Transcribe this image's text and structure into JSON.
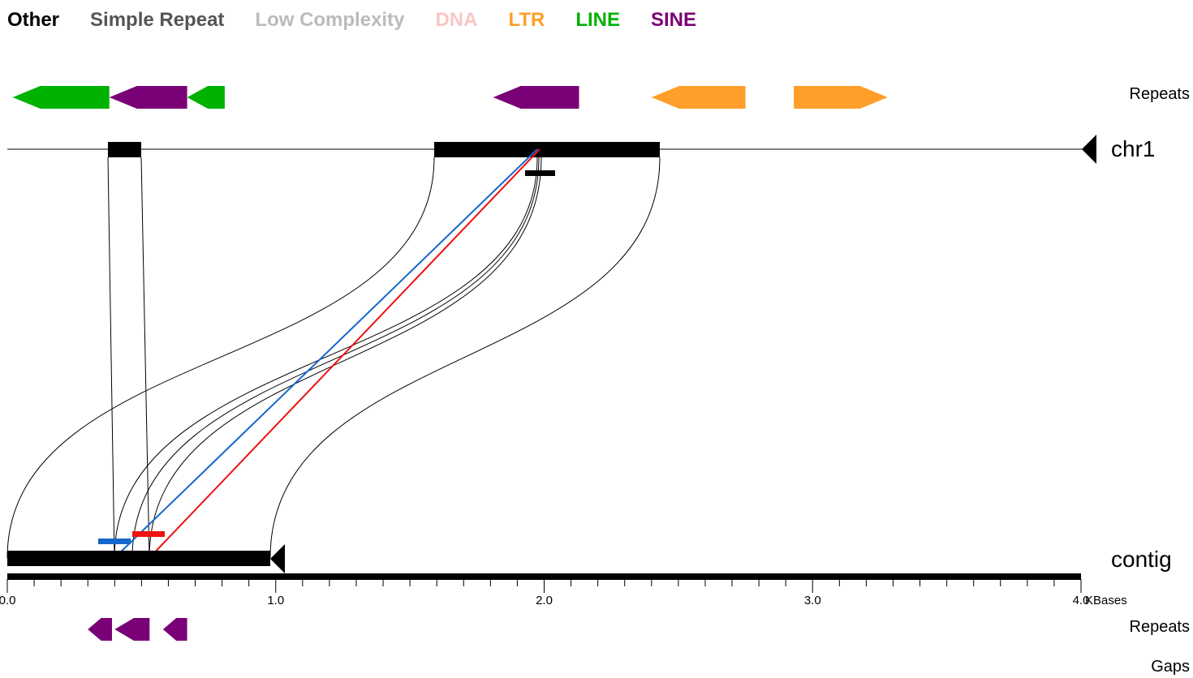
{
  "legend": {
    "items": [
      {
        "label": "Other",
        "color": "#000000"
      },
      {
        "label": "Simple Repeat",
        "color": "#555555"
      },
      {
        "label": "Low Complexity",
        "color": "#bbbbbb"
      },
      {
        "label": "DNA",
        "color": "#f9c6c6"
      },
      {
        "label": "LTR",
        "color": "#ff9f2a"
      },
      {
        "label": "LINE",
        "color": "#00b200"
      },
      {
        "label": "SINE",
        "color": "#7a0077"
      }
    ]
  },
  "labels": {
    "top_repeats": "Repeats",
    "reference": "chr1",
    "query": "contig",
    "bottom_repeats": "Repeats",
    "gaps": "Gaps"
  },
  "axis": {
    "unit": "KBases",
    "min": 0,
    "max": 4.0,
    "major_step": 1.0,
    "minor_step": 0.1,
    "ticks": [
      "0.0",
      "1.0",
      "2.0",
      "3.0",
      "4.0"
    ]
  },
  "colors": {
    "line": "#00b200",
    "sine": "#7a0077",
    "ltr": "#ff9f2a",
    "forward_match": "#1366cc",
    "reverse_match": "#ee1111",
    "outline": "#000000"
  },
  "reference_repeats": [
    {
      "class": "LINE",
      "strand": "-",
      "start": 0.02,
      "end": 0.38
    },
    {
      "class": "SINE",
      "strand": "-",
      "start": 0.38,
      "end": 0.67
    },
    {
      "class": "LINE",
      "strand": "-",
      "start": 0.67,
      "end": 0.81
    },
    {
      "class": "SINE",
      "strand": "-",
      "start": 1.81,
      "end": 2.13
    },
    {
      "class": "LTR",
      "strand": "-",
      "start": 2.4,
      "end": 2.75
    },
    {
      "class": "LTR",
      "strand": "+",
      "start": 2.93,
      "end": 3.28
    }
  ],
  "query_repeats": [
    {
      "class": "SINE",
      "strand": "-",
      "start": 0.3,
      "end": 0.39
    },
    {
      "class": "SINE",
      "strand": "-",
      "start": 0.4,
      "end": 0.53
    },
    {
      "class": "SINE",
      "strand": "-",
      "start": 0.58,
      "end": 0.67
    }
  ],
  "reference_blocks": [
    {
      "start": 0.38,
      "end": 0.5
    },
    {
      "start": 1.59,
      "end": 2.43
    }
  ],
  "query_sequence": {
    "length": 0.98,
    "strand": "-"
  }
}
